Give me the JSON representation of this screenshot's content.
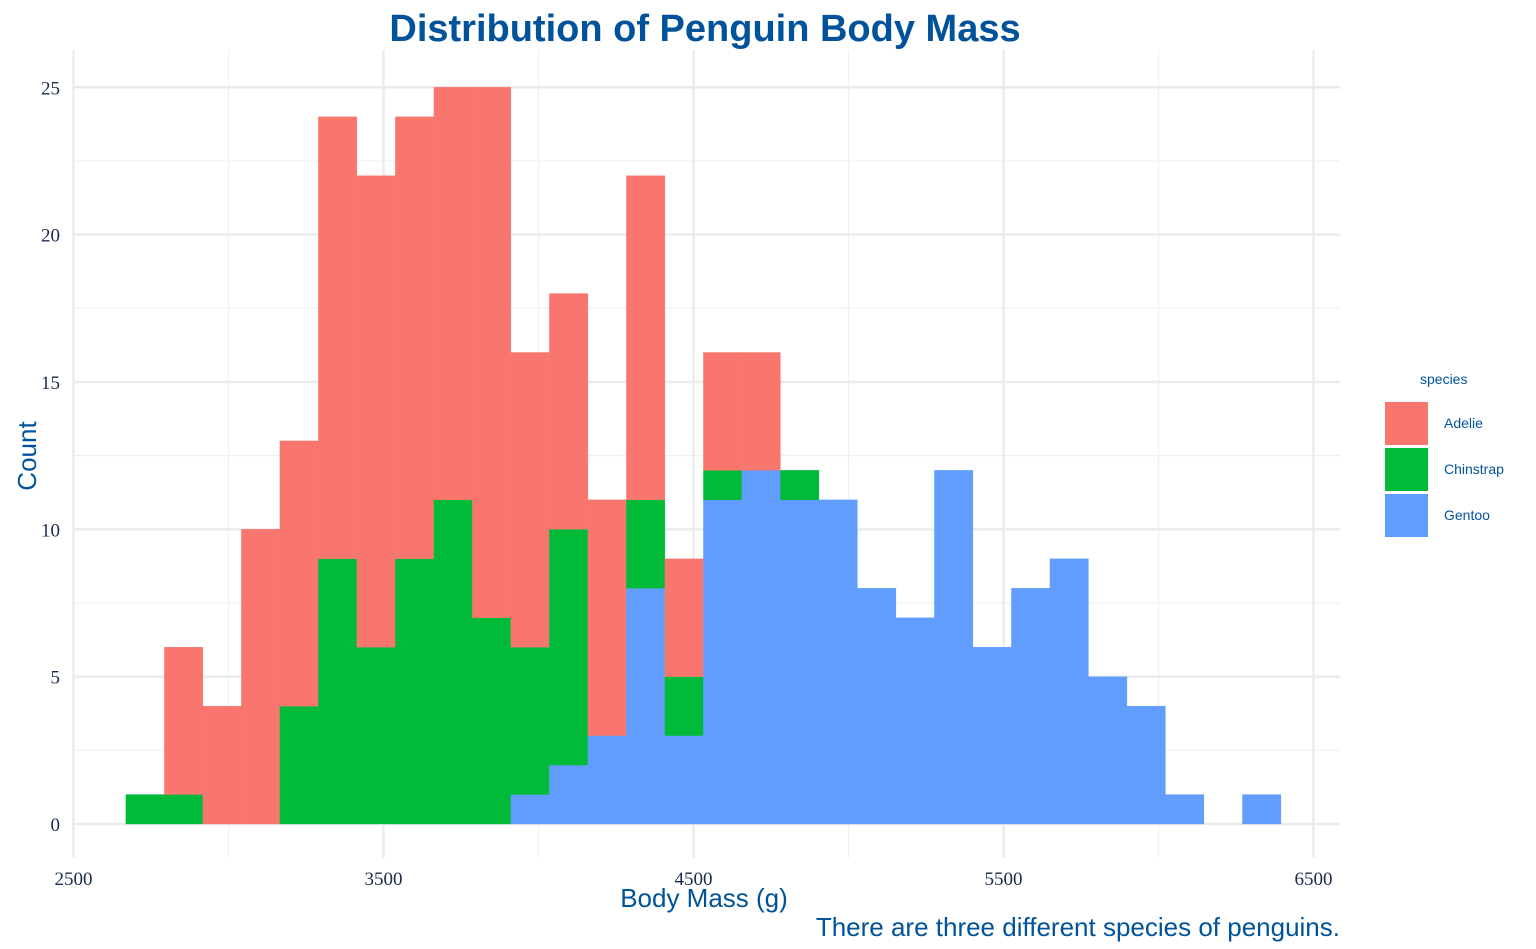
{
  "chart_data": {
    "type": "bar",
    "subtype": "stacked-histogram",
    "title": "Distribution of Penguin Body Mass",
    "caption": "There are three different species of penguins.",
    "xlabel": "Body Mass (g)",
    "ylabel": "Count",
    "xlim": [
      2500,
      6500
    ],
    "ylim": [
      0,
      25
    ],
    "x_ticks": [
      2500,
      3500,
      4500,
      5500,
      6500
    ],
    "y_ticks": [
      0,
      5,
      10,
      15,
      20,
      25
    ],
    "grid": true,
    "bin_width": 124.2,
    "bin_starts": [
      2669,
      2793.2,
      2917.4,
      3041.6,
      3165.8,
      3290,
      3414.2,
      3538.4,
      3662.6,
      3786.8,
      3911,
      4035.2,
      4159.4,
      4283.6,
      4407.8,
      4532,
      4656.2,
      4780.4,
      4904.6,
      5028.8,
      5153,
      5277.2,
      5401.4,
      5525.6,
      5649.8,
      5774,
      5898.2,
      6022.4,
      6146.6,
      6270.8
    ],
    "legend": {
      "title": "species",
      "position": "right"
    },
    "series": [
      {
        "name": "Adelie",
        "color": "#F8766D",
        "values": [
          0,
          5,
          4,
          10,
          9,
          15,
          16,
          15,
          14,
          18,
          10,
          8,
          8,
          11,
          4,
          4,
          4,
          0,
          0,
          0,
          0,
          0,
          0,
          0,
          0,
          0,
          0,
          0,
          0,
          0
        ]
      },
      {
        "name": "Chinstrap",
        "color": "#00BA38",
        "values": [
          1,
          1,
          0,
          0,
          4,
          9,
          6,
          9,
          11,
          7,
          5,
          8,
          0,
          3,
          2,
          1,
          0,
          1,
          0,
          0,
          0,
          0,
          0,
          0,
          0,
          0,
          0,
          0,
          0,
          0
        ]
      },
      {
        "name": "Gentoo",
        "color": "#619CFF",
        "values": [
          0,
          0,
          0,
          0,
          0,
          0,
          0,
          0,
          0,
          0,
          1,
          2,
          3,
          8,
          3,
          11,
          12,
          11,
          11,
          8,
          7,
          12,
          6,
          8,
          9,
          5,
          4,
          1,
          0,
          1
        ]
      }
    ]
  }
}
